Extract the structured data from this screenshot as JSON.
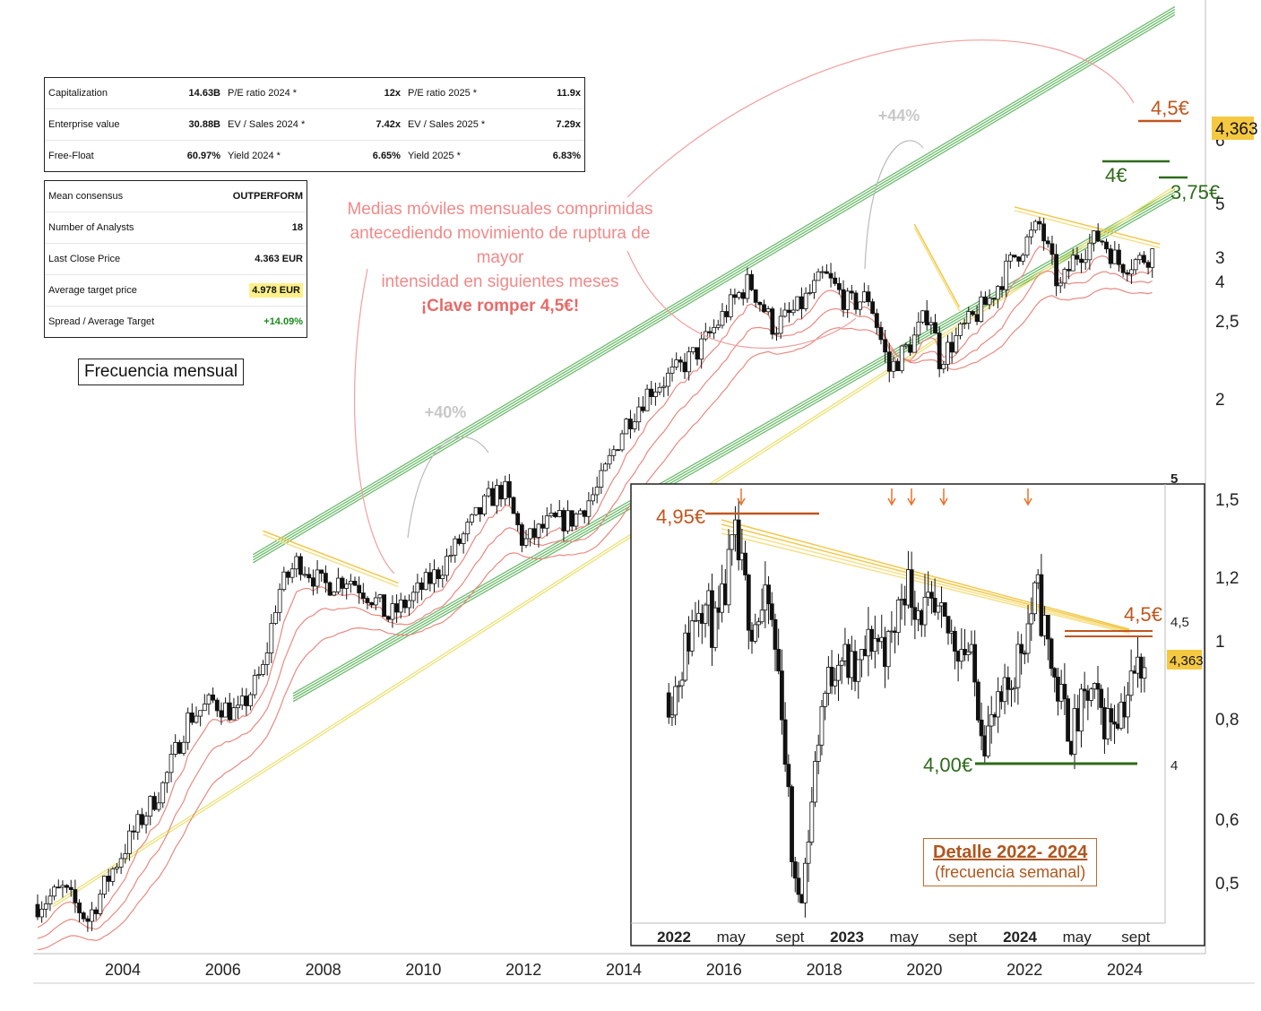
{
  "stats_table": {
    "rows": [
      [
        {
          "label": "Capitalization",
          "value": "14.63B"
        },
        {
          "label": "P/E ratio 2024 *",
          "value": "12x"
        },
        {
          "label": "P/E ratio 2025 *",
          "value": "11.9x"
        }
      ],
      [
        {
          "label": "Enterprise value",
          "value": "30.88B"
        },
        {
          "label": "EV / Sales 2024 *",
          "value": "7.42x"
        },
        {
          "label": "EV / Sales 2025 *",
          "value": "7.29x"
        }
      ],
      [
        {
          "label": "Free-Float",
          "value": "60.97%"
        },
        {
          "label": "Yield 2024 *",
          "value": "6.65%"
        },
        {
          "label": "Yield 2025 *",
          "value": "6.83%"
        }
      ]
    ]
  },
  "consensus_table": {
    "rows": [
      {
        "label": "Mean consensus",
        "value": "OUTPERFORM"
      },
      {
        "label": "Number of Analysts",
        "value": "18"
      },
      {
        "label": "Last Close Price",
        "value": "4.363 EUR"
      },
      {
        "label": "Average target price",
        "value": "4.978 EUR"
      },
      {
        "label": "Spread / Average Target",
        "value": "+14.09%"
      }
    ]
  },
  "labels": {
    "frequency": "Frecuencia mensual",
    "note_lines": [
      "Medias móviles mensuales comprimidas",
      "antecediendo movimiento de ruptura de mayor",
      "intensidad en siguientes meses"
    ],
    "note_key": "¡Clave romper 4,5€!",
    "gain_1": "+40%",
    "gain_2": "+44%",
    "level_45": "4,5€",
    "level_4": "4€",
    "level_375": "3,75€",
    "last_price": "4,363",
    "detail_title": "Detalle 2022- 2024",
    "detail_sub": "(frecuencia semanal)",
    "inset_495": "4,95€",
    "inset_45": "4,5€",
    "inset_400": "4,00€",
    "inset_last": "4,363"
  },
  "colors": {
    "channel_green": "#6dbb6d",
    "channel_yellow": "#e9e27a",
    "moving_average": "#e88a80",
    "resistance_orange": "#c0561e",
    "support_green": "#2e6b1a",
    "price_badge": "#f5c842",
    "arrow_pink": "#f0a0a0"
  },
  "chart_data": [
    {
      "type": "candlestick",
      "scale": "log",
      "x_ticks": [
        "2004",
        "2006",
        "2008",
        "2010",
        "2012",
        "2014",
        "2016",
        "2018",
        "2020",
        "2022",
        "2024"
      ],
      "y_ticks_left": [
        "0,5",
        "0,6",
        "0,8",
        "1",
        "1,2",
        "1,5",
        "2",
        "2,5",
        "3"
      ],
      "y_ticks_right_top": [
        "4",
        "5",
        "6"
      ],
      "close_path": [
        {
          "x": 2002.3,
          "y": 0.47
        },
        {
          "x": 2002.8,
          "y": 0.49
        },
        {
          "x": 2003.3,
          "y": 0.45
        },
        {
          "x": 2003.8,
          "y": 0.52
        },
        {
          "x": 2004.3,
          "y": 0.59
        },
        {
          "x": 2004.8,
          "y": 0.66
        },
        {
          "x": 2005.3,
          "y": 0.8
        },
        {
          "x": 2005.8,
          "y": 0.84
        },
        {
          "x": 2006.3,
          "y": 0.81
        },
        {
          "x": 2006.8,
          "y": 0.92
        },
        {
          "x": 2007.1,
          "y": 1.15
        },
        {
          "x": 2007.5,
          "y": 1.26
        },
        {
          "x": 2008.0,
          "y": 1.17
        },
        {
          "x": 2008.5,
          "y": 1.2
        },
        {
          "x": 2009.0,
          "y": 1.13
        },
        {
          "x": 2009.3,
          "y": 1.07
        },
        {
          "x": 2009.7,
          "y": 1.12
        },
        {
          "x": 2010.3,
          "y": 1.22
        },
        {
          "x": 2010.8,
          "y": 1.35
        },
        {
          "x": 2011.3,
          "y": 1.5
        },
        {
          "x": 2011.6,
          "y": 1.55
        },
        {
          "x": 2012.0,
          "y": 1.32
        },
        {
          "x": 2012.5,
          "y": 1.4
        },
        {
          "x": 2013.0,
          "y": 1.42
        },
        {
          "x": 2013.5,
          "y": 1.55
        },
        {
          "x": 2014.0,
          "y": 1.85
        },
        {
          "x": 2014.5,
          "y": 2.05
        },
        {
          "x": 2015.0,
          "y": 2.15
        },
        {
          "x": 2015.5,
          "y": 2.3
        },
        {
          "x": 2016.0,
          "y": 2.55
        },
        {
          "x": 2016.5,
          "y": 2.8
        },
        {
          "x": 2017.0,
          "y": 2.45
        },
        {
          "x": 2017.5,
          "y": 2.6
        },
        {
          "x": 2018.0,
          "y": 2.85
        },
        {
          "x": 2018.5,
          "y": 2.62
        },
        {
          "x": 2018.9,
          "y": 2.68
        },
        {
          "x": 2019.3,
          "y": 3.1
        },
        {
          "x": 2019.8,
          "y": 3.4
        },
        {
          "x": 2020.1,
          "y": 3.7
        },
        {
          "x": 2020.3,
          "y": 3.2
        },
        {
          "x": 2020.8,
          "y": 3.5
        },
        {
          "x": 2021.3,
          "y": 3.8
        },
        {
          "x": 2021.8,
          "y": 4.3
        },
        {
          "x": 2022.3,
          "y": 4.7
        },
        {
          "x": 2022.7,
          "y": 3.9
        },
        {
          "x": 2023.0,
          "y": 4.3
        },
        {
          "x": 2023.5,
          "y": 4.55
        },
        {
          "x": 2023.9,
          "y": 4.2
        },
        {
          "x": 2024.3,
          "y": 4.25
        },
        {
          "x": 2024.6,
          "y": 4.363
        }
      ],
      "levels": [
        {
          "value": 4.5,
          "label": "4,5€"
        },
        {
          "value": 4.0,
          "label": "4€"
        },
        {
          "value": 3.75,
          "label": "3,75€"
        }
      ],
      "last_price": 4.363
    },
    {
      "type": "candlestick",
      "title": "Detalle 2022- 2024",
      "subtitle": "(frecuencia semanal)",
      "x_ticks": [
        "2022",
        "may",
        "sept",
        "2023",
        "may",
        "sept",
        "2024",
        "may",
        "sept"
      ],
      "y_ticks": [
        "4",
        "4,5",
        "5"
      ],
      "close_path": [
        {
          "x": 2022.0,
          "y": 4.25
        },
        {
          "x": 2022.15,
          "y": 4.6
        },
        {
          "x": 2022.25,
          "y": 4.45
        },
        {
          "x": 2022.35,
          "y": 4.78
        },
        {
          "x": 2022.45,
          "y": 4.5
        },
        {
          "x": 2022.55,
          "y": 4.55
        },
        {
          "x": 2022.62,
          "y": 4.25
        },
        {
          "x": 2022.7,
          "y": 3.55
        },
        {
          "x": 2022.75,
          "y": 3.6
        },
        {
          "x": 2022.85,
          "y": 4.2
        },
        {
          "x": 2022.95,
          "y": 4.4
        },
        {
          "x": 2023.05,
          "y": 4.3
        },
        {
          "x": 2023.15,
          "y": 4.45
        },
        {
          "x": 2023.25,
          "y": 4.4
        },
        {
          "x": 2023.33,
          "y": 4.65
        },
        {
          "x": 2023.42,
          "y": 4.55
        },
        {
          "x": 2023.5,
          "y": 4.5
        },
        {
          "x": 2023.6,
          "y": 4.45
        },
        {
          "x": 2023.7,
          "y": 4.4
        },
        {
          "x": 2023.8,
          "y": 4.1
        },
        {
          "x": 2023.9,
          "y": 4.2
        },
        {
          "x": 2024.0,
          "y": 4.4
        },
        {
          "x": 2024.1,
          "y": 4.6
        },
        {
          "x": 2024.2,
          "y": 4.3
        },
        {
          "x": 2024.3,
          "y": 4.1
        },
        {
          "x": 2024.4,
          "y": 4.25
        },
        {
          "x": 2024.5,
          "y": 4.15
        },
        {
          "x": 2024.6,
          "y": 4.22
        },
        {
          "x": 2024.7,
          "y": 4.363
        }
      ],
      "levels": [
        {
          "value": 4.95,
          "label": "4,95€"
        },
        {
          "value": 4.5,
          "label": "4,5€"
        },
        {
          "value": 4.0,
          "label": "4,00€"
        }
      ],
      "last_price": 4.363
    }
  ]
}
